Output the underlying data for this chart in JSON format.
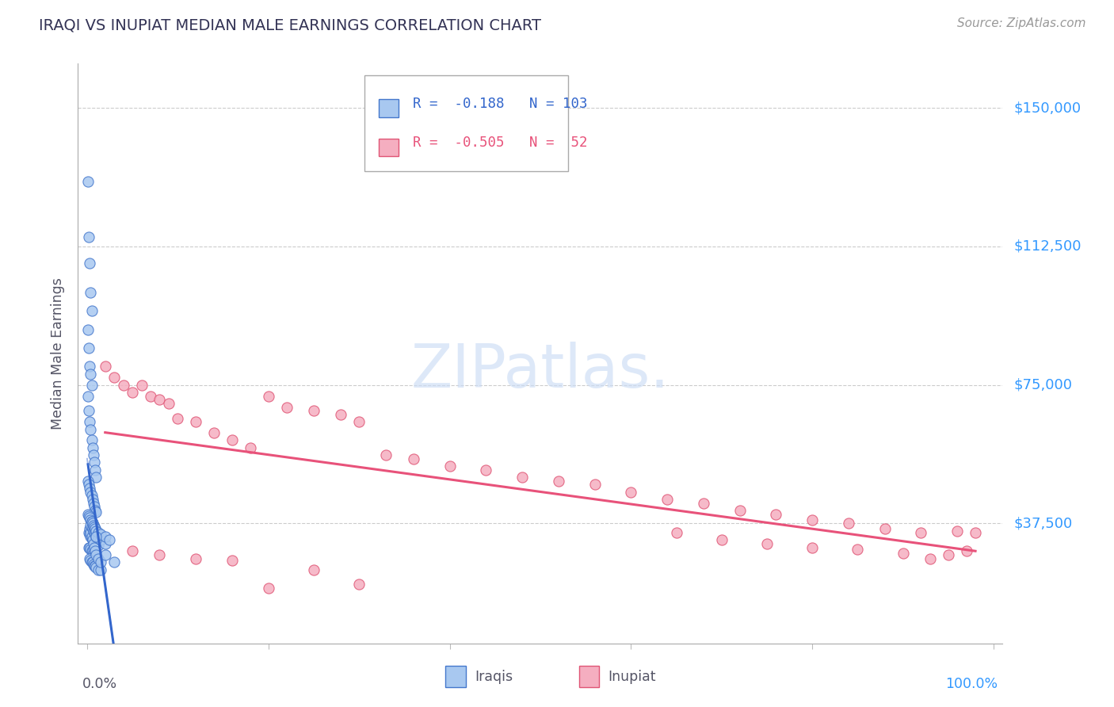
{
  "title": "IRAQI VS INUPIAT MEDIAN MALE EARNINGS CORRELATION CHART",
  "source": "Source: ZipAtlas.com",
  "ylabel": "Median Male Earnings",
  "ytick_labels": [
    "$37,500",
    "$75,000",
    "$112,500",
    "$150,000"
  ],
  "ytick_values": [
    37500,
    75000,
    112500,
    150000
  ],
  "ymin": 5000,
  "ymax": 162000,
  "xmin": -0.01,
  "xmax": 1.01,
  "color_iraqis_fill": "#a8c8f0",
  "color_iraqis_edge": "#4477cc",
  "color_inupiat_fill": "#f5aec0",
  "color_inupiat_edge": "#e05575",
  "color_line_iraqis": "#3366cc",
  "color_line_inupiat": "#e8527a",
  "color_title": "#333355",
  "color_yticks": "#3399ff",
  "color_source": "#999999",
  "background_color": "#ffffff",
  "iraqis_x": [
    0.001,
    0.002,
    0.003,
    0.004,
    0.005,
    0.001,
    0.002,
    0.003,
    0.004,
    0.005,
    0.001,
    0.002,
    0.003,
    0.004,
    0.005,
    0.006,
    0.007,
    0.008,
    0.009,
    0.01,
    0.001,
    0.002,
    0.003,
    0.004,
    0.005,
    0.006,
    0.007,
    0.008,
    0.009,
    0.01,
    0.001,
    0.002,
    0.003,
    0.004,
    0.005,
    0.006,
    0.007,
    0.008,
    0.009,
    0.01,
    0.002,
    0.003,
    0.004,
    0.005,
    0.006,
    0.007,
    0.008,
    0.009,
    0.01,
    0.012,
    0.002,
    0.003,
    0.004,
    0.005,
    0.006,
    0.007,
    0.008,
    0.009,
    0.01,
    0.012,
    0.003,
    0.004,
    0.005,
    0.006,
    0.007,
    0.008,
    0.009,
    0.01,
    0.012,
    0.015,
    0.003,
    0.004,
    0.005,
    0.006,
    0.007,
    0.008,
    0.009,
    0.01,
    0.012,
    0.015,
    0.004,
    0.005,
    0.006,
    0.007,
    0.008,
    0.009,
    0.01,
    0.012,
    0.015,
    0.02,
    0.005,
    0.006,
    0.007,
    0.008,
    0.009,
    0.01,
    0.012,
    0.015,
    0.02,
    0.025,
    0.01,
    0.02,
    0.03
  ],
  "iraqis_y": [
    130000,
    115000,
    108000,
    100000,
    95000,
    90000,
    85000,
    80000,
    78000,
    75000,
    72000,
    68000,
    65000,
    63000,
    60000,
    58000,
    56000,
    54000,
    52000,
    50000,
    49000,
    48000,
    47000,
    46000,
    45000,
    44000,
    43000,
    42000,
    41000,
    40500,
    40000,
    39500,
    39000,
    38500,
    38000,
    37500,
    37000,
    36500,
    36000,
    35500,
    35000,
    34500,
    34000,
    33500,
    33000,
    33000,
    33000,
    32500,
    32000,
    31500,
    31000,
    31000,
    30500,
    30000,
    30000,
    29500,
    29000,
    28800,
    28500,
    28000,
    28000,
    27500,
    27000,
    27000,
    26500,
    26000,
    26000,
    25500,
    25000,
    25000,
    36000,
    35000,
    34000,
    33000,
    32000,
    31000,
    30000,
    29000,
    28000,
    27000,
    37000,
    36500,
    36000,
    35500,
    35000,
    34500,
    34000,
    33500,
    33000,
    32000,
    38000,
    37500,
    37000,
    36500,
    36000,
    35500,
    35000,
    34500,
    34000,
    33000,
    34000,
    29000,
    27000
  ],
  "inupiat_x": [
    0.02,
    0.03,
    0.04,
    0.05,
    0.06,
    0.07,
    0.08,
    0.09,
    0.1,
    0.12,
    0.14,
    0.16,
    0.18,
    0.2,
    0.22,
    0.25,
    0.28,
    0.3,
    0.33,
    0.36,
    0.4,
    0.44,
    0.48,
    0.52,
    0.56,
    0.6,
    0.64,
    0.68,
    0.72,
    0.76,
    0.8,
    0.84,
    0.88,
    0.92,
    0.96,
    0.05,
    0.08,
    0.12,
    0.16,
    0.2,
    0.25,
    0.3,
    0.65,
    0.7,
    0.75,
    0.8,
    0.85,
    0.9,
    0.95,
    0.98,
    0.97,
    0.93
  ],
  "inupiat_y": [
    80000,
    77000,
    75000,
    73000,
    75000,
    72000,
    71000,
    70000,
    66000,
    65000,
    62000,
    60000,
    58000,
    72000,
    69000,
    68000,
    67000,
    65000,
    56000,
    55000,
    53000,
    52000,
    50000,
    49000,
    48000,
    46000,
    44000,
    43000,
    41000,
    40000,
    38500,
    37500,
    36000,
    35000,
    35500,
    30000,
    29000,
    28000,
    27500,
    20000,
    25000,
    21000,
    35000,
    33000,
    32000,
    31000,
    30500,
    29500,
    29000,
    35000,
    30000,
    28000
  ]
}
